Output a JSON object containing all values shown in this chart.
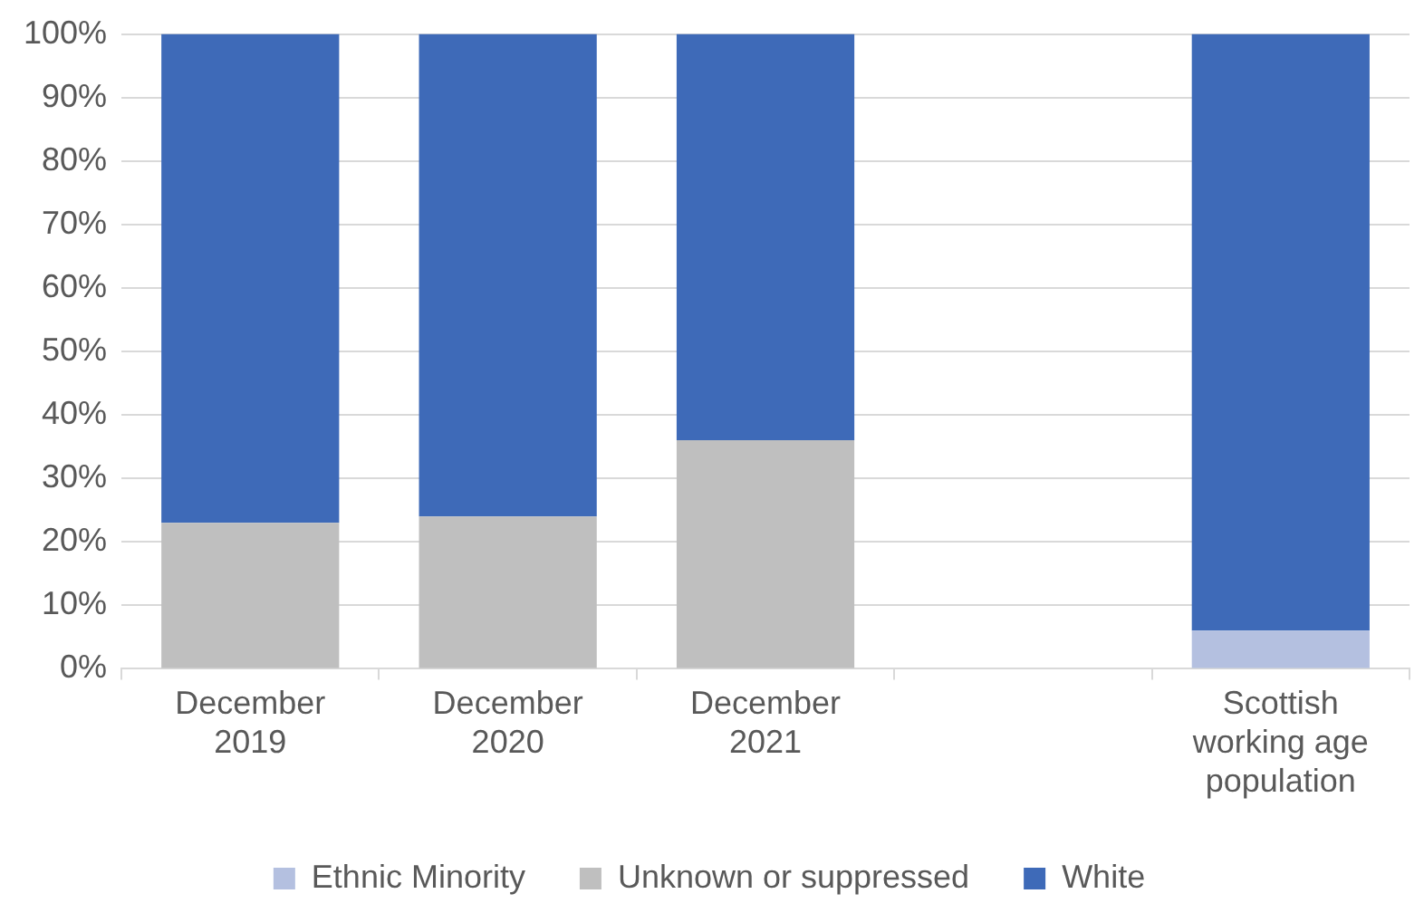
{
  "chart_data": {
    "type": "bar",
    "stacked": true,
    "categories": [
      "December 2019",
      "December 2020",
      "December 2021",
      null,
      "Scottish working age population"
    ],
    "series": [
      {
        "name": "Ethnic Minority",
        "color": "#b4c0e0",
        "values": [
          0,
          0,
          0,
          null,
          6
        ]
      },
      {
        "name": "Unknown or suppressed",
        "color": "#bfbfbf",
        "values": [
          23,
          24,
          36,
          null,
          0
        ]
      },
      {
        "name": "White",
        "color": "#3e6ab8",
        "values": [
          77,
          76,
          64,
          null,
          94
        ]
      }
    ],
    "ylim": [
      0,
      100
    ],
    "yticks": [
      {
        "value": 0,
        "label": "0%"
      },
      {
        "value": 10,
        "label": "10%"
      },
      {
        "value": 20,
        "label": "20%"
      },
      {
        "value": 30,
        "label": "30%"
      },
      {
        "value": 40,
        "label": "40%"
      },
      {
        "value": 50,
        "label": "50%"
      },
      {
        "value": 60,
        "label": "60%"
      },
      {
        "value": 70,
        "label": "70%"
      },
      {
        "value": 80,
        "label": "80%"
      },
      {
        "value": 90,
        "label": "90%"
      },
      {
        "value": 100,
        "label": "100%"
      }
    ],
    "grid": "y",
    "legend": "bottom"
  }
}
